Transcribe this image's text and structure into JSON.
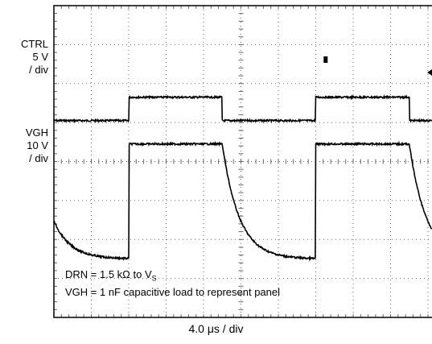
{
  "chart_data": {
    "type": "line",
    "channels": [
      {
        "name_line1": "CTRL",
        "name_line2": "5 V",
        "name_line3": "/ div"
      },
      {
        "name_line1": "VGH",
        "name_line2": "10 V",
        "name_line3": "/ div"
      }
    ],
    "annotation_line1": "DRN = 1.5 kΩ to V",
    "annotation_line1_sub": "S",
    "annotation_line2": "VGH = 1 nF capacitive load to represent panel",
    "x_scale_label": "4.0 μs / div",
    "grid": true,
    "divisions": {
      "x": 10,
      "y": 8
    },
    "period_us": 20,
    "rising_edges_us": [
      8.0,
      28.0
    ],
    "falling_edges_us": [
      18.0,
      38.0
    ],
    "ctrl_low_div": 1.05,
    "ctrl_high_div": 1.65,
    "vgh_high_div": 3.35,
    "vgh_low_div": 0.4,
    "vgh_decay_tau_us": 1.8,
    "trace_color": "#000000",
    "grid_color": "#666666"
  }
}
